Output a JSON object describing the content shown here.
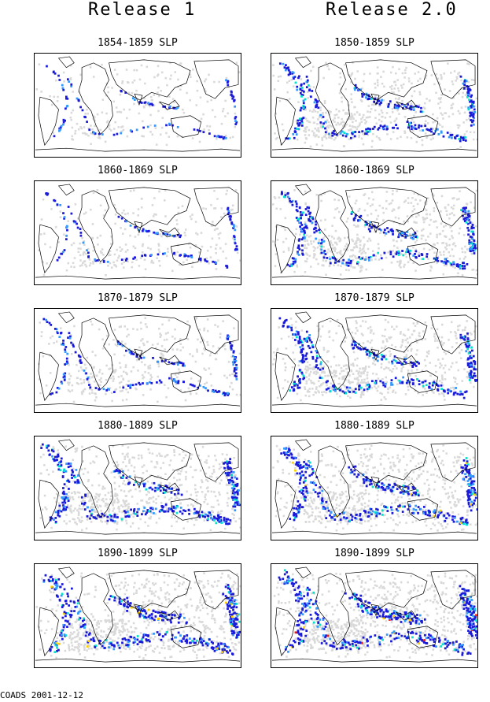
{
  "columns": [
    {
      "title": "Release 1"
    },
    {
      "title": "Release 2.0"
    }
  ],
  "panels": [
    {
      "label": "1854-1859 SLP",
      "column": 1,
      "density": 0.15
    },
    {
      "label": "1850-1859 SLP",
      "column": 2,
      "density": 0.55
    },
    {
      "label": "1860-1869 SLP",
      "column": 1,
      "density": 0.2
    },
    {
      "label": "1860-1869 SLP",
      "column": 2,
      "density": 0.6
    },
    {
      "label": "1870-1879 SLP",
      "column": 1,
      "density": 0.3
    },
    {
      "label": "1870-1879 SLP",
      "column": 2,
      "density": 0.65
    },
    {
      "label": "1880-1889 SLP",
      "column": 1,
      "density": 0.7
    },
    {
      "label": "1880-1889 SLP",
      "column": 2,
      "density": 0.8
    },
    {
      "label": "1890-1899 SLP",
      "column": 1,
      "density": 0.85
    },
    {
      "label": "1890-1899 SLP",
      "column": 2,
      "density": 0.95
    }
  ],
  "colors": {
    "track_gray": "#d9d9d9",
    "low": "#1a1ad9",
    "mid": "#3399ff",
    "high": "#00e5cc",
    "peak": "#ffd000",
    "max": "#e82020"
  },
  "footer": "COADS 2001-12-12"
}
